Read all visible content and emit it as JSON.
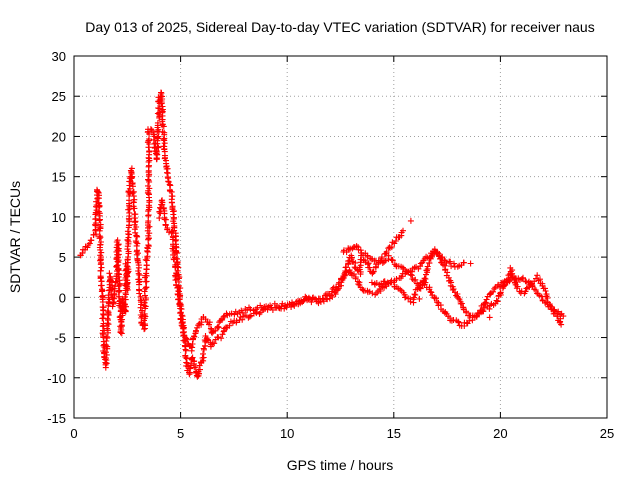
{
  "chart_data": {
    "type": "scatter",
    "title": "Day 013 of 2025, Sidereal Day-to-day VTEC variation (SDTVAR) for receiver naus",
    "xlabel": "GPS time / hours",
    "ylabel": "SDTVAR / TECUs",
    "xlim": [
      0,
      25
    ],
    "ylim": [
      -15,
      30
    ],
    "x_ticks": [
      "0",
      "5",
      "10",
      "15",
      "20",
      "25"
    ],
    "y_ticks": [
      "30",
      "25",
      "20",
      "15",
      "10",
      "5",
      "0",
      "-5",
      "-10",
      "-15"
    ],
    "grid": true,
    "marker": "+",
    "series": [
      {
        "name": "SDTVAR",
        "color": "#ff0000",
        "trace": [
          [
            0.3,
            5.2
          ],
          [
            0.4,
            5.5
          ],
          [
            1.0,
            8.0
          ],
          [
            1.1,
            13.5
          ],
          [
            1.2,
            11.0
          ],
          [
            1.25,
            6.0
          ],
          [
            1.3,
            1.0
          ],
          [
            1.35,
            -1.0
          ],
          [
            1.4,
            -6.5
          ],
          [
            1.5,
            -8.5
          ],
          [
            1.55,
            -5.0
          ],
          [
            1.7,
            3.0
          ],
          [
            1.8,
            0.0
          ],
          [
            1.85,
            -1.0
          ],
          [
            2.0,
            2.5
          ],
          [
            2.05,
            7.0
          ],
          [
            2.1,
            3.5
          ],
          [
            2.2,
            -4.5
          ],
          [
            2.3,
            0.0
          ],
          [
            2.4,
            -2.0
          ],
          [
            2.45,
            4.0
          ],
          [
            2.5,
            1.0
          ],
          [
            2.6,
            14.0
          ],
          [
            2.7,
            16.0
          ],
          [
            3.2,
            -3.5
          ],
          [
            3.3,
            -4.0
          ],
          [
            3.4,
            5.0
          ],
          [
            3.5,
            7.0
          ],
          [
            3.5,
            21.0
          ],
          [
            3.7,
            20.5
          ],
          [
            3.8,
            19.0
          ],
          [
            3.9,
            17.0
          ],
          [
            4.0,
            25.0
          ],
          [
            4.1,
            25.5
          ],
          [
            4.15,
            23.0
          ],
          [
            4.2,
            20.0
          ],
          [
            4.3,
            17.0
          ],
          [
            4.4,
            15.0
          ],
          [
            4.5,
            14.0
          ],
          [
            4.6,
            12.0
          ],
          [
            4.7,
            9.0
          ],
          [
            4.8,
            6.0
          ],
          [
            4.9,
            3.0
          ],
          [
            5.0,
            -1.0
          ],
          [
            5.1,
            -3.5
          ],
          [
            5.2,
            -6.0
          ],
          [
            5.3,
            -8.5
          ],
          [
            5.4,
            -9.5
          ],
          [
            5.5,
            -8.0
          ],
          [
            5.6,
            -7.5
          ],
          [
            5.7,
            -9.0
          ],
          [
            5.8,
            -10.0
          ],
          [
            5.9,
            -8.5
          ],
          [
            6.0,
            -8.0
          ],
          [
            6.1,
            -6.5
          ],
          [
            6.2,
            -5.0
          ],
          [
            6.4,
            -6.0
          ],
          [
            6.6,
            -5.5
          ],
          [
            6.8,
            -5.0
          ],
          [
            7.0,
            -4.5
          ],
          [
            7.2,
            -3.5
          ],
          [
            7.5,
            -3.0
          ],
          [
            8.0,
            -2.5
          ],
          [
            8.5,
            -2.0
          ],
          [
            9.0,
            -1.5
          ],
          [
            9.5,
            -1.5
          ],
          [
            10.0,
            -1.0
          ],
          [
            10.5,
            -0.5
          ],
          [
            11.0,
            0.0
          ],
          [
            11.5,
            -0.5
          ],
          [
            12.0,
            0.0
          ],
          [
            12.3,
            0.5
          ],
          [
            12.5,
            1.5
          ],
          [
            12.7,
            3.0
          ],
          [
            12.9,
            4.5
          ],
          [
            13.0,
            5.0
          ],
          [
            13.2,
            4.0
          ],
          [
            13.4,
            3.0
          ],
          [
            13.5,
            5.0
          ],
          [
            13.7,
            4.5
          ],
          [
            14.0,
            3.0
          ],
          [
            14.3,
            4.5
          ],
          [
            14.6,
            5.5
          ],
          [
            14.9,
            6.5
          ],
          [
            15.2,
            7.5
          ],
          [
            15.4,
            8.0
          ],
          [
            15.5,
            8.2
          ]
        ],
        "trace2": [
          [
            4.0,
            10.0
          ],
          [
            4.1,
            12.0
          ],
          [
            4.2,
            11.0
          ],
          [
            4.3,
            9.0
          ],
          [
            4.4,
            8.5
          ],
          [
            4.6,
            8.0
          ],
          [
            4.7,
            5.0
          ],
          [
            4.8,
            2.0
          ],
          [
            4.9,
            0.0
          ],
          [
            5.0,
            -2.0
          ],
          [
            5.1,
            -4.0
          ],
          [
            5.3,
            -5.5
          ],
          [
            5.5,
            -6.5
          ],
          [
            5.7,
            -4.0
          ],
          [
            5.9,
            -3.5
          ],
          [
            6.1,
            -2.5
          ],
          [
            6.3,
            -3.0
          ],
          [
            6.5,
            -4.5
          ],
          [
            6.8,
            -3.5
          ],
          [
            7.0,
            -2.5
          ],
          [
            7.3,
            -2.0
          ],
          [
            7.7,
            -2.0
          ],
          [
            8.2,
            -1.5
          ],
          [
            8.8,
            -1.2
          ],
          [
            9.5,
            -1.0
          ],
          [
            10.2,
            -1.0
          ],
          [
            10.8,
            -0.5
          ],
          [
            11.4,
            -0.3
          ],
          [
            12.0,
            0.5
          ],
          [
            12.5,
            2.0
          ],
          [
            12.9,
            3.5
          ],
          [
            13.2,
            2.5
          ],
          [
            13.5,
            1.0
          ],
          [
            13.8,
            0.5
          ],
          [
            14.2,
            0.5
          ],
          [
            14.6,
            1.5
          ],
          [
            15.0,
            2.0
          ],
          [
            15.3,
            2.5
          ],
          [
            15.6,
            3.0
          ],
          [
            16.0,
            3.5
          ],
          [
            16.3,
            4.0
          ],
          [
            16.6,
            5.0
          ],
          [
            16.9,
            5.5
          ],
          [
            17.2,
            5.0
          ],
          [
            17.5,
            4.5
          ],
          [
            17.8,
            4.0
          ],
          [
            18.1,
            4.0
          ],
          [
            18.4,
            4.5
          ]
        ],
        "trace3": [
          [
            12.6,
            5.5
          ],
          [
            12.9,
            6.0
          ],
          [
            13.2,
            6.5
          ],
          [
            13.5,
            5.5
          ],
          [
            13.8,
            5.0
          ],
          [
            14.1,
            4.5
          ],
          [
            14.5,
            4.5
          ],
          [
            14.8,
            5.0
          ],
          [
            15.1,
            4.0
          ],
          [
            15.4,
            3.5
          ],
          [
            15.7,
            3.0
          ],
          [
            16.0,
            2.0
          ],
          [
            16.3,
            1.0
          ],
          [
            16.5,
            2.5
          ],
          [
            16.7,
            5.0
          ],
          [
            16.9,
            6.0
          ],
          [
            17.1,
            5.5
          ],
          [
            17.4,
            3.5
          ],
          [
            17.7,
            1.5
          ],
          [
            18.0,
            0.0
          ],
          [
            18.2,
            -1.0
          ],
          [
            18.4,
            -2.0
          ],
          [
            18.7,
            -2.5
          ],
          [
            19.0,
            -2.0
          ],
          [
            19.3,
            -1.5
          ],
          [
            19.6,
            -1.0
          ],
          [
            19.8,
            -0.5
          ],
          [
            20.0,
            0.5
          ],
          [
            20.2,
            1.5
          ],
          [
            20.4,
            2.0
          ],
          [
            20.6,
            2.5
          ],
          [
            20.8,
            2.0
          ],
          [
            21.0,
            2.5
          ],
          [
            21.3,
            2.0
          ],
          [
            21.6,
            1.0
          ],
          [
            21.9,
            0.0
          ],
          [
            22.2,
            -1.0
          ],
          [
            22.5,
            -1.5
          ],
          [
            22.8,
            -2.0
          ],
          [
            23.0,
            -2.5
          ]
        ],
        "trace4": [
          [
            14.0,
            2.0
          ],
          [
            14.3,
            1.5
          ],
          [
            14.6,
            2.0
          ],
          [
            15.0,
            1.5
          ],
          [
            15.3,
            1.0
          ],
          [
            15.6,
            0.0
          ],
          [
            15.9,
            -0.5
          ],
          [
            16.1,
            1.0
          ],
          [
            16.4,
            2.0
          ],
          [
            16.7,
            1.0
          ],
          [
            17.0,
            -0.5
          ],
          [
            17.3,
            -1.5
          ],
          [
            17.6,
            -2.5
          ],
          [
            17.9,
            -3.0
          ],
          [
            18.2,
            -3.5
          ],
          [
            18.5,
            -3.0
          ],
          [
            18.8,
            -2.5
          ],
          [
            19.1,
            -1.5
          ],
          [
            19.4,
            0.0
          ],
          [
            19.7,
            1.0
          ],
          [
            20.0,
            1.5
          ],
          [
            20.3,
            2.0
          ],
          [
            20.5,
            3.5
          ],
          [
            20.8,
            1.0
          ],
          [
            21.1,
            0.5
          ],
          [
            21.4,
            1.5
          ],
          [
            21.7,
            2.5
          ],
          [
            22.0,
            1.5
          ],
          [
            22.2,
            0.0
          ],
          [
            22.4,
            -1.5
          ],
          [
            22.7,
            -2.5
          ],
          [
            22.9,
            -3.5
          ]
        ],
        "isolated": [
          [
            15.8,
            9.5
          ],
          [
            13.0,
            5.2
          ],
          [
            18.6,
            4.2
          ],
          [
            19.5,
            -2.5
          ],
          [
            16.2,
            -0.2
          ],
          [
            22.8,
            -3.0
          ]
        ]
      }
    ]
  }
}
